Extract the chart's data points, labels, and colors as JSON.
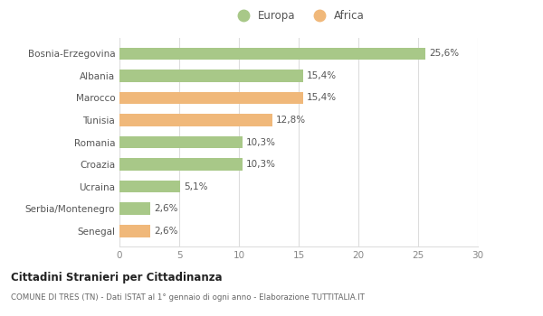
{
  "categories": [
    "Bosnia-Erzegovina",
    "Albania",
    "Marocco",
    "Tunisia",
    "Romania",
    "Croazia",
    "Ucraina",
    "Serbia/Montenegro",
    "Senegal"
  ],
  "values": [
    25.6,
    15.4,
    15.4,
    12.8,
    10.3,
    10.3,
    5.1,
    2.6,
    2.6
  ],
  "labels": [
    "25,6%",
    "15,4%",
    "15,4%",
    "12,8%",
    "10,3%",
    "10,3%",
    "5,1%",
    "2,6%",
    "2,6%"
  ],
  "colors": [
    "#a8c888",
    "#a8c888",
    "#f0b87a",
    "#f0b87a",
    "#a8c888",
    "#a8c888",
    "#a8c888",
    "#a8c888",
    "#f0b87a"
  ],
  "europa_color": "#a8c888",
  "africa_color": "#f0b87a",
  "xlim": [
    0,
    30
  ],
  "xticks": [
    0,
    5,
    10,
    15,
    20,
    25,
    30
  ],
  "title": "Cittadini Stranieri per Cittadinanza",
  "subtitle": "COMUNE DI TRES (TN) - Dati ISTAT al 1° gennaio di ogni anno - Elaborazione TUTTITALIA.IT",
  "legend_europa": "Europa",
  "legend_africa": "Africa",
  "bg_color": "#ffffff",
  "grid_color": "#dddddd",
  "label_color": "#555555",
  "tick_color": "#888888",
  "title_color": "#222222",
  "subtitle_color": "#666666"
}
